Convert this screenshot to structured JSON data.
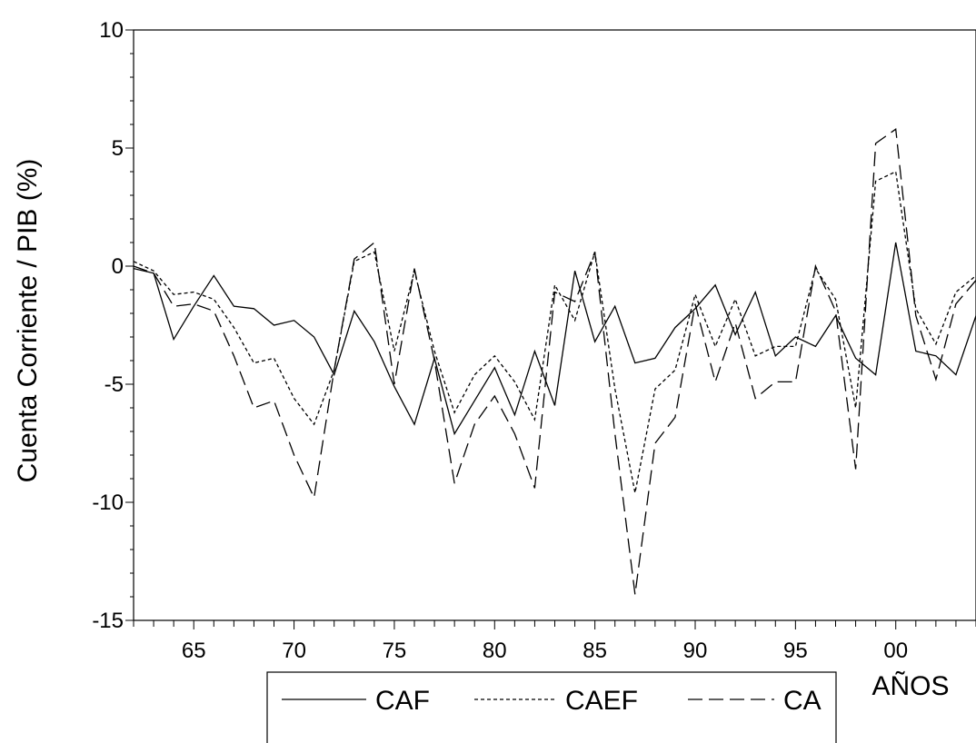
{
  "chart_data": {
    "type": "line",
    "title": "",
    "xlabel": "AÑOS",
    "ylabel": "Cuenta Corriente / PIB (%)",
    "xlim": [
      1962,
      2004
    ],
    "ylim": [
      -15,
      10
    ],
    "x_ticks": [
      1965,
      1970,
      1975,
      1980,
      1985,
      1990,
      1995,
      2000
    ],
    "x_tick_labels": [
      "65",
      "70",
      "75",
      "80",
      "85",
      "90",
      "95",
      "00"
    ],
    "y_ticks": [
      -15,
      -10,
      -5,
      0,
      5,
      10
    ],
    "y_tick_labels": [
      "-15",
      "-10",
      "-5",
      "0",
      "5",
      "10"
    ],
    "grid": false,
    "legend_position": "bottom",
    "x": [
      1962,
      1963,
      1964,
      1965,
      1966,
      1967,
      1968,
      1969,
      1970,
      1971,
      1972,
      1973,
      1974,
      1975,
      1976,
      1977,
      1978,
      1979,
      1980,
      1981,
      1982,
      1983,
      1984,
      1985,
      1986,
      1987,
      1988,
      1989,
      1990,
      1991,
      1992,
      1993,
      1994,
      1995,
      1996,
      1997,
      1998,
      1999,
      2000,
      2001,
      2002,
      2003,
      2004
    ],
    "series": [
      {
        "name": "CAF",
        "dash": "solid",
        "values": [
          -0.1,
          -0.3,
          -3.1,
          -1.7,
          -0.4,
          -1.7,
          -1.8,
          -2.5,
          -2.3,
          -3.0,
          -4.6,
          -1.9,
          -3.2,
          -5.1,
          -6.7,
          -3.9,
          -7.1,
          -5.7,
          -4.3,
          -6.3,
          -3.6,
          -5.9,
          -0.2,
          -3.2,
          -1.7,
          -4.1,
          -3.9,
          -2.6,
          -1.8,
          -0.8,
          -2.9,
          -1.1,
          -3.8,
          -3.0,
          -3.4,
          -2.1,
          -3.9,
          -4.6,
          1.0,
          -3.6,
          -3.8,
          -4.6,
          -2.1
        ]
      },
      {
        "name": "CAEF",
        "dash": "short",
        "values": [
          0.2,
          -0.2,
          -1.2,
          -1.1,
          -1.4,
          -2.6,
          -4.1,
          -3.9,
          -5.6,
          -6.7,
          -4.4,
          0.2,
          0.6,
          -3.6,
          -0.2,
          -3.6,
          -6.2,
          -4.6,
          -3.8,
          -4.9,
          -6.5,
          -0.8,
          -2.3,
          0.6,
          -5.2,
          -9.6,
          -5.2,
          -4.4,
          -1.2,
          -3.4,
          -1.4,
          -3.8,
          -3.4,
          -3.4,
          -0.1,
          -1.4,
          -6.0,
          3.6,
          4.0,
          -1.8,
          -3.3,
          -1.1,
          -0.4
        ]
      },
      {
        "name": "CA",
        "dash": "long",
        "values": [
          0.0,
          -0.3,
          -1.7,
          -1.6,
          -1.9,
          -3.8,
          -6.0,
          -5.7,
          -8.0,
          -9.8,
          -4.4,
          0.3,
          1.0,
          -5.0,
          -0.1,
          -4.0,
          -9.2,
          -6.7,
          -5.5,
          -7.1,
          -9.4,
          -1.1,
          -1.5,
          0.6,
          -7.1,
          -13.9,
          -7.5,
          -6.4,
          -1.6,
          -4.9,
          -2.4,
          -5.6,
          -4.9,
          -4.9,
          0.0,
          -1.9,
          -8.6,
          5.2,
          5.8,
          -2.1,
          -4.8,
          -1.6,
          -0.6
        ]
      }
    ]
  },
  "colors": {
    "line": "#000000",
    "background": "#ffffff"
  }
}
